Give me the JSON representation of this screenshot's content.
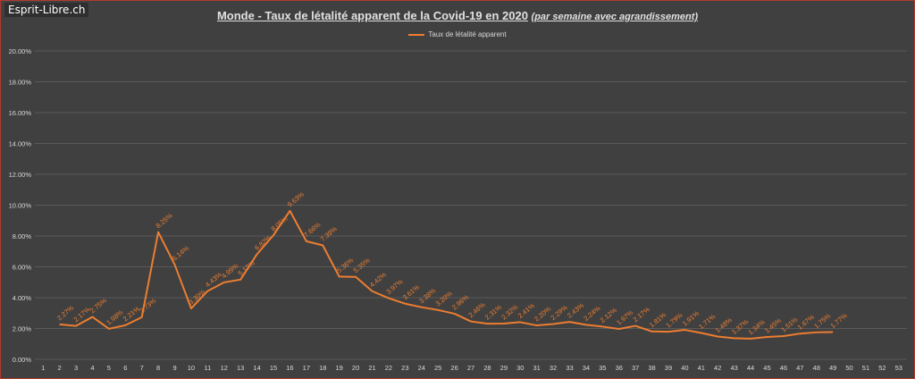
{
  "brand": "Esprit-Libre.ch",
  "title": {
    "main": "Monde - Taux de létalité apparent de la Covid-19 en 2020",
    "sub": "(par semaine avec agrandissement)"
  },
  "colors": {
    "series": "#ed7d31",
    "grid": "#5a5a5a",
    "text": "#d8d8d8",
    "background": "#404040"
  },
  "chart_data": {
    "type": "line",
    "legend": "top-center",
    "grid": true,
    "ylim": [
      0,
      20
    ],
    "y_ticks": [
      "0.00%",
      "2.00%",
      "4.00%",
      "6.00%",
      "8.00%",
      "10.00%",
      "12.00%",
      "14.00%",
      "16.00%",
      "18.00%",
      "20.00%"
    ],
    "categories": [
      "1",
      "2",
      "3",
      "4",
      "5",
      "6",
      "7",
      "8",
      "9",
      "10",
      "11",
      "12",
      "13",
      "14",
      "15",
      "16",
      "17",
      "18",
      "19",
      "20",
      "21",
      "22",
      "23",
      "24",
      "25",
      "26",
      "27",
      "28",
      "29",
      "30",
      "31",
      "32",
      "33",
      "34",
      "35",
      "36",
      "37",
      "38",
      "39",
      "40",
      "41",
      "42",
      "43",
      "44",
      "45",
      "46",
      "47",
      "48",
      "49",
      "50",
      "51",
      "52",
      "53"
    ],
    "series": [
      {
        "name": "Taux de létalité apparent",
        "x": [
          2,
          3,
          4,
          5,
          6,
          7,
          8,
          9,
          10,
          11,
          12,
          13,
          14,
          15,
          16,
          17,
          18,
          19,
          20,
          21,
          22,
          23,
          24,
          25,
          26,
          27,
          28,
          29,
          30,
          31,
          32,
          33,
          34,
          35,
          36,
          37,
          38,
          39,
          40,
          41,
          42,
          43,
          44,
          45,
          46,
          47,
          48,
          49
        ],
        "values": [
          2.27,
          2.17,
          2.75,
          1.98,
          2.21,
          2.73,
          8.25,
          6.14,
          3.3,
          4.43,
          4.99,
          5.17,
          6.82,
          8.05,
          9.63,
          7.66,
          7.39,
          5.36,
          5.35,
          4.42,
          3.97,
          3.61,
          3.38,
          3.2,
          2.96,
          2.46,
          2.31,
          2.32,
          2.41,
          2.2,
          2.29,
          2.43,
          2.24,
          2.12,
          1.97,
          2.17,
          1.81,
          1.79,
          1.91,
          1.71,
          1.48,
          1.37,
          1.34,
          1.45,
          1.51,
          1.67,
          1.75,
          1.77
        ],
        "labels": [
          "2.27%",
          "2.17%",
          "2.75%",
          "1.98%",
          "2.21%",
          "2.73%",
          "8.25%",
          "6.14%",
          "3.30%",
          "4.43%",
          "4.99%",
          "5.17%",
          "6.82%",
          "8.05%",
          "9.63%",
          "7.66%",
          "7.39%",
          "5.36%",
          "5.35%",
          "4.42%",
          "3.97%",
          "3.61%",
          "3.38%",
          "3.20%",
          "2.96%",
          "2.46%",
          "2.31%",
          "2.32%",
          "2.41%",
          "2.20%",
          "2.29%",
          "2.43%",
          "2.24%",
          "2.12%",
          "1.97%",
          "2.17%",
          "1.81%",
          "1.79%",
          "1.91%",
          "1.71%",
          "1.48%",
          "1.37%",
          "1.34%",
          "1.45%",
          "1.51%",
          "1.67%",
          "1.75%",
          "1.77%"
        ]
      }
    ]
  }
}
